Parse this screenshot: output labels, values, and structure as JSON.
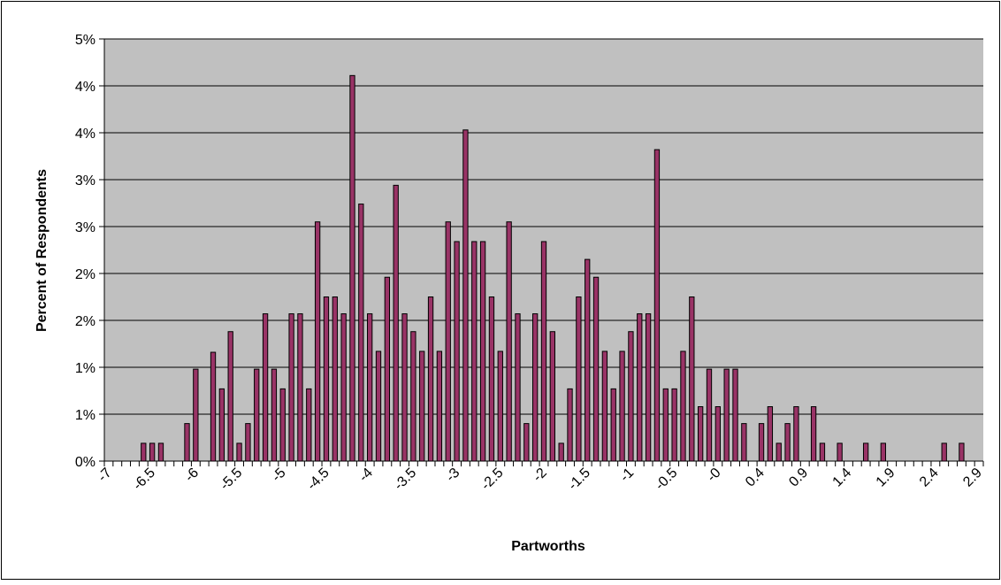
{
  "chart_data": {
    "type": "bar",
    "x_label": "Partworths",
    "y_label": "Percent of Respondents",
    "color": "#993366",
    "plot_background": "#c0c0c0",
    "grid": true,
    "ylim": [
      0,
      4.5
    ],
    "yticks": [
      {
        "value": 0,
        "label": "0%"
      },
      {
        "value": 0.5,
        "label": "1%"
      },
      {
        "value": 1,
        "label": "1%"
      },
      {
        "value": 1.5,
        "label": "2%"
      },
      {
        "value": 2,
        "label": "2%"
      },
      {
        "value": 2.5,
        "label": "3%"
      },
      {
        "value": 3,
        "label": "3%"
      },
      {
        "value": 3.5,
        "label": "4%"
      },
      {
        "value": 4,
        "label": "4%"
      },
      {
        "value": 4.5,
        "label": "5%"
      }
    ],
    "categories": [
      "-7",
      null,
      null,
      null,
      null,
      "-6.5",
      null,
      null,
      null,
      null,
      "-6",
      null,
      null,
      null,
      null,
      "-5.5",
      null,
      null,
      null,
      null,
      "-5",
      null,
      null,
      null,
      null,
      "-4.5",
      null,
      null,
      null,
      null,
      "-4",
      null,
      null,
      null,
      null,
      "-3.5",
      null,
      null,
      null,
      null,
      "-3",
      null,
      null,
      null,
      null,
      "-2.5",
      null,
      null,
      null,
      null,
      "-2",
      null,
      null,
      null,
      null,
      "-1.5",
      null,
      null,
      null,
      null,
      "-1",
      null,
      null,
      null,
      null,
      "-0.5",
      null,
      null,
      null,
      null,
      "-0",
      null,
      null,
      null,
      null,
      "0.4",
      null,
      null,
      null,
      null,
      "0.9",
      null,
      null,
      null,
      null,
      "1.4",
      null,
      null,
      null,
      null,
      "1.9",
      null,
      null,
      null,
      null,
      "2.4",
      null,
      null,
      null,
      null,
      "2.9"
    ],
    "values": [
      0,
      0,
      0,
      0,
      0.19,
      0.19,
      0.19,
      0,
      0,
      0.4,
      0.98,
      0,
      1.16,
      0.77,
      1.38,
      0.19,
      0.4,
      0.98,
      1.57,
      0.98,
      0.77,
      1.57,
      1.57,
      0.77,
      2.55,
      1.75,
      1.75,
      1.57,
      4.11,
      2.74,
      1.57,
      1.17,
      1.96,
      2.94,
      1.57,
      1.38,
      1.17,
      1.75,
      1.17,
      2.55,
      2.34,
      3.53,
      2.34,
      2.34,
      1.75,
      1.17,
      2.55,
      1.57,
      0.4,
      1.57,
      2.34,
      1.38,
      0.19,
      0.77,
      1.75,
      2.15,
      1.96,
      1.17,
      0.77,
      1.17,
      1.38,
      1.57,
      1.57,
      3.32,
      0.77,
      0.77,
      1.17,
      1.75,
      0.58,
      0.98,
      0.58,
      0.98,
      0.98,
      0.4,
      0,
      0.4,
      0.58,
      0.19,
      0.4,
      0.58,
      0,
      0.58,
      0.19,
      0,
      0.19,
      0,
      0,
      0.19,
      0,
      0.19,
      0,
      0,
      0,
      0,
      0,
      0,
      0.19,
      0,
      0.19,
      0,
      0
    ]
  }
}
